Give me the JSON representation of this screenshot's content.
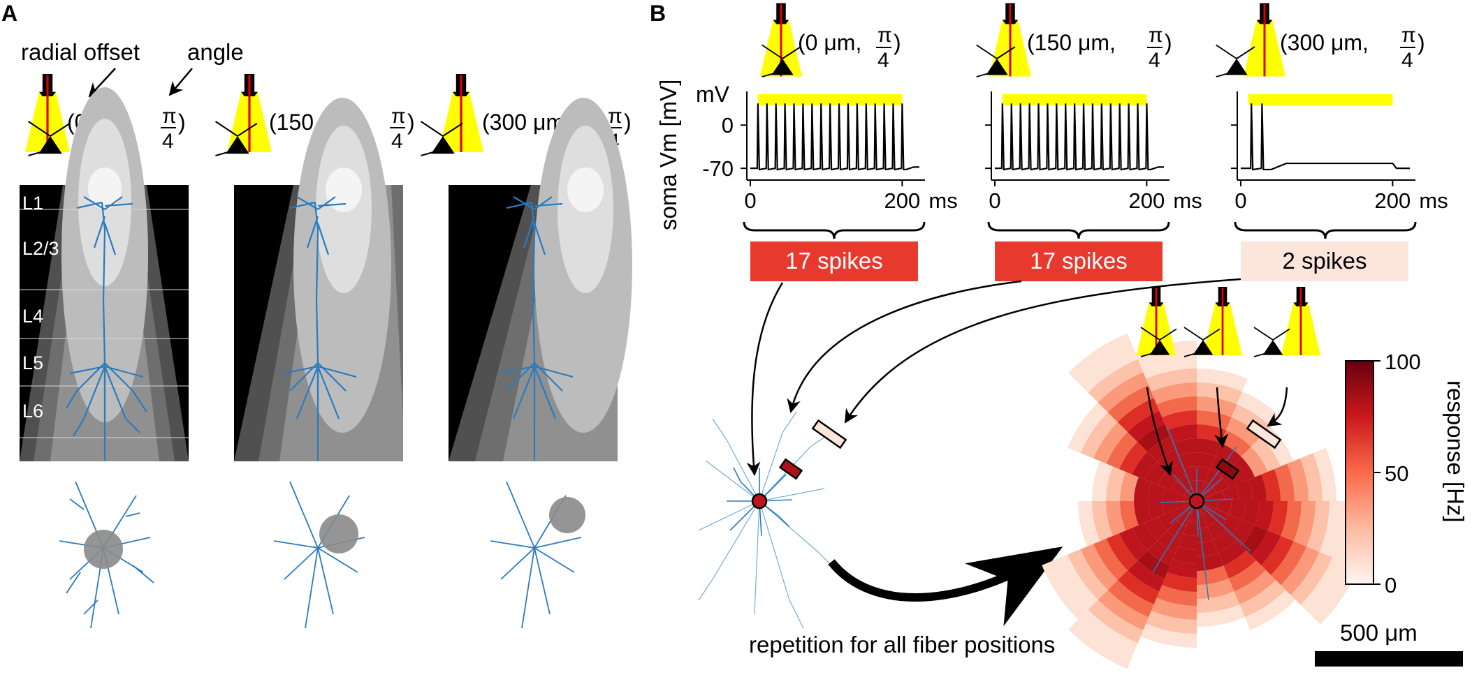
{
  "panel_a": {
    "letter": "A",
    "annotation_radial": "radial offset",
    "annotation_angle": "angle",
    "fibers": [
      {
        "offset": "150 μm"
      },
      {
        "offset": "300 μm"
      }
    ],
    "angle_numerator": "π",
    "angle_denominator": "4",
    "layers": [
      "L1",
      "L2/3",
      "L4",
      "L5",
      "L6"
    ]
  },
  "panel_b": {
    "letter": "B",
    "traces": [
      {
        "offset": "0 μm",
        "spikes_label": "17 spikes",
        "spike_count": 17,
        "box_color": "#e8392f"
      },
      {
        "offset": "150 μm",
        "spikes_label": "17 spikes",
        "spike_count": 17,
        "box_color": "#e8392f"
      },
      {
        "offset": "300 μm",
        "spikes_label": "2 spikes",
        "spike_count": 2,
        "box_color": "#fce6dc"
      }
    ],
    "ylabel": "soma Vm [mV]",
    "yunit": "mV",
    "yticks": [
      "0",
      "-70"
    ],
    "xticks": [
      "0",
      "200"
    ],
    "xunit": "ms",
    "repetition_label": "repetition for all fiber positions",
    "colorbar": {
      "label": "response [Hz]",
      "ticks": [
        "100",
        "50",
        "0"
      ]
    },
    "scalebar_label": "500 μm"
  },
  "colors": {
    "light_yellow": "#ffff00",
    "fiber_red": "#e00000",
    "neuron_blue": "#2a7bc0",
    "dark_red": "#8b0a0f"
  }
}
